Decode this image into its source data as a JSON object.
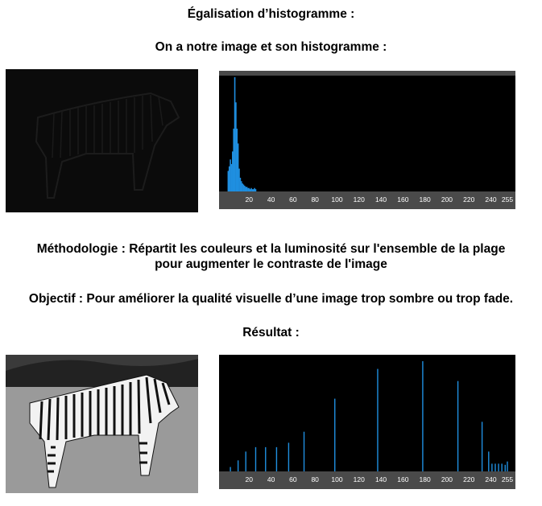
{
  "title": "Égalisation d’histogramme :",
  "intro": "On a notre image et son histogramme :",
  "methodology_line1": "Méthodologie : Répartit les couleurs et la luminosité sur l'ensemble de la plage",
  "methodology_line2": "pour augmenter le contraste de l'image",
  "objective": "Objectif : Pour améliorer la qualité visuelle d’une image trop sombre ou trop fade.",
  "result_label": "Résultat :",
  "histogram_ticks": [
    "20",
    "40",
    "60",
    "80",
    "100",
    "120",
    "140",
    "160",
    "180",
    "200",
    "220",
    "240",
    "255"
  ],
  "colors": {
    "bar": "#1f8fe0",
    "background": "#000000",
    "axis": "#4a4a4a"
  },
  "chart_data": [
    {
      "type": "bar",
      "x": [
        1,
        2,
        3,
        4,
        5,
        6,
        7,
        8,
        9,
        10,
        11,
        12,
        13,
        14,
        15,
        16,
        17,
        18,
        19,
        20,
        21,
        22,
        23,
        24,
        25,
        26
      ],
      "values": [
        0.18,
        0.22,
        0.28,
        0.24,
        0.35,
        0.55,
        1.0,
        0.78,
        0.55,
        0.42,
        0.2,
        0.12,
        0.09,
        0.07,
        0.06,
        0.05,
        0.04,
        0.04,
        0.03,
        0.03,
        0.02,
        0.03,
        0.02,
        0.02,
        0.03,
        0.02
      ],
      "xlim": [
        0,
        255
      ],
      "xticks": [
        20,
        40,
        60,
        80,
        100,
        120,
        140,
        160,
        180,
        200,
        220,
        240,
        255
      ]
    },
    {
      "type": "bar",
      "x": [
        3,
        10,
        17,
        26,
        35,
        45,
        56,
        70,
        98,
        137,
        178,
        210,
        232,
        238,
        241,
        244,
        247,
        250,
        253,
        255
      ],
      "values": [
        0.04,
        0.1,
        0.18,
        0.22,
        0.22,
        0.22,
        0.26,
        0.36,
        0.66,
        0.93,
        1.0,
        0.82,
        0.45,
        0.18,
        0.07,
        0.07,
        0.07,
        0.07,
        0.06,
        0.09
      ],
      "xlim": [
        0,
        255
      ],
      "xticks": [
        20,
        40,
        60,
        80,
        100,
        120,
        140,
        160,
        180,
        200,
        220,
        240,
        255
      ]
    }
  ]
}
